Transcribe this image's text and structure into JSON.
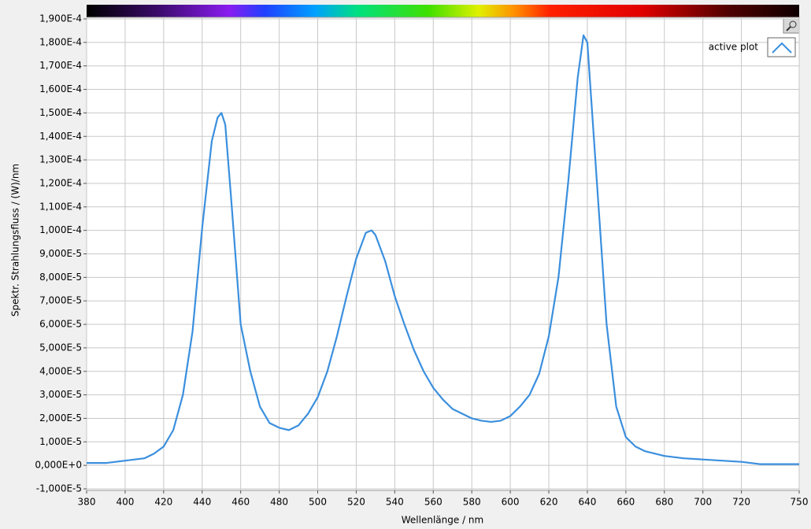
{
  "chart_data": {
    "type": "line",
    "x_label": "Wellenlänge / nm",
    "y_label": "Spektr. Strahlungsfluss / (W)/nm",
    "xlim": [
      380,
      750
    ],
    "ylim": [
      -1e-05,
      0.00019
    ],
    "xticks": [
      380,
      400,
      420,
      440,
      460,
      480,
      500,
      520,
      540,
      560,
      580,
      600,
      620,
      640,
      660,
      680,
      700,
      720,
      750
    ],
    "yticks": [
      {
        "value": -1e-05,
        "label": "-1,000E-5"
      },
      {
        "value": 0,
        "label": "0,000E+0"
      },
      {
        "value": 1e-05,
        "label": "1,000E-5"
      },
      {
        "value": 2e-05,
        "label": "2,000E-5"
      },
      {
        "value": 3e-05,
        "label": "3,000E-5"
      },
      {
        "value": 4e-05,
        "label": "4,000E-5"
      },
      {
        "value": 5e-05,
        "label": "5,000E-5"
      },
      {
        "value": 6e-05,
        "label": "6,000E-5"
      },
      {
        "value": 7e-05,
        "label": "7,000E-5"
      },
      {
        "value": 8e-05,
        "label": "8,000E-5"
      },
      {
        "value": 9e-05,
        "label": "9,000E-5"
      },
      {
        "value": 0.0001,
        "label": "1,000E-4"
      },
      {
        "value": 0.00011,
        "label": "1,100E-4"
      },
      {
        "value": 0.00012,
        "label": "1,200E-4"
      },
      {
        "value": 0.00013,
        "label": "1,300E-4"
      },
      {
        "value": 0.00014,
        "label": "1,400E-4"
      },
      {
        "value": 0.00015,
        "label": "1,500E-4"
      },
      {
        "value": 0.00016,
        "label": "1,600E-4"
      },
      {
        "value": 0.00017,
        "label": "1,700E-4"
      },
      {
        "value": 0.00018,
        "label": "1,800E-4"
      },
      {
        "value": 0.00019,
        "label": "1,900E-4"
      }
    ],
    "grid": true,
    "legend": "top-right",
    "x": [
      380,
      390,
      400,
      410,
      415,
      420,
      425,
      430,
      435,
      440,
      445,
      448,
      450,
      452,
      455,
      460,
      465,
      470,
      475,
      480,
      485,
      490,
      495,
      500,
      505,
      510,
      515,
      520,
      525,
      528,
      530,
      535,
      540,
      545,
      550,
      555,
      560,
      565,
      570,
      575,
      580,
      585,
      590,
      595,
      600,
      605,
      610,
      615,
      620,
      625,
      630,
      635,
      638,
      640,
      645,
      650,
      655,
      660,
      665,
      670,
      675,
      680,
      690,
      700,
      710,
      720,
      730,
      740,
      750
    ],
    "series": [
      {
        "name": "active plot",
        "color": "#3a8fde",
        "values": [
          1e-06,
          1e-06,
          2e-06,
          3e-06,
          5e-06,
          8e-06,
          1.5e-05,
          3e-05,
          5.7e-05,
          0.000101,
          0.000138,
          0.000148,
          0.00015,
          0.000145,
          0.000114,
          6e-05,
          4e-05,
          2.5e-05,
          1.8e-05,
          1.6e-05,
          1.5e-05,
          1.7e-05,
          2.2e-05,
          2.9e-05,
          4e-05,
          5.5e-05,
          7.2e-05,
          8.8e-05,
          9.9e-05,
          0.0001,
          9.8e-05,
          8.7e-05,
          7.2e-05,
          6e-05,
          4.9e-05,
          4e-05,
          3.3e-05,
          2.8e-05,
          2.4e-05,
          2.2e-05,
          2e-05,
          1.9e-05,
          1.85e-05,
          1.9e-05,
          2.1e-05,
          2.5e-05,
          3e-05,
          3.9e-05,
          5.5e-05,
          8e-05,
          0.00012,
          0.000165,
          0.000183,
          0.00018,
          0.00012,
          6e-05,
          2.5e-05,
          1.2e-05,
          8e-06,
          6e-06,
          5e-06,
          4e-06,
          3e-06,
          2.5e-06,
          2e-06,
          1.5e-06,
          5e-07,
          5e-07,
          5e-07
        ]
      }
    ]
  }
}
